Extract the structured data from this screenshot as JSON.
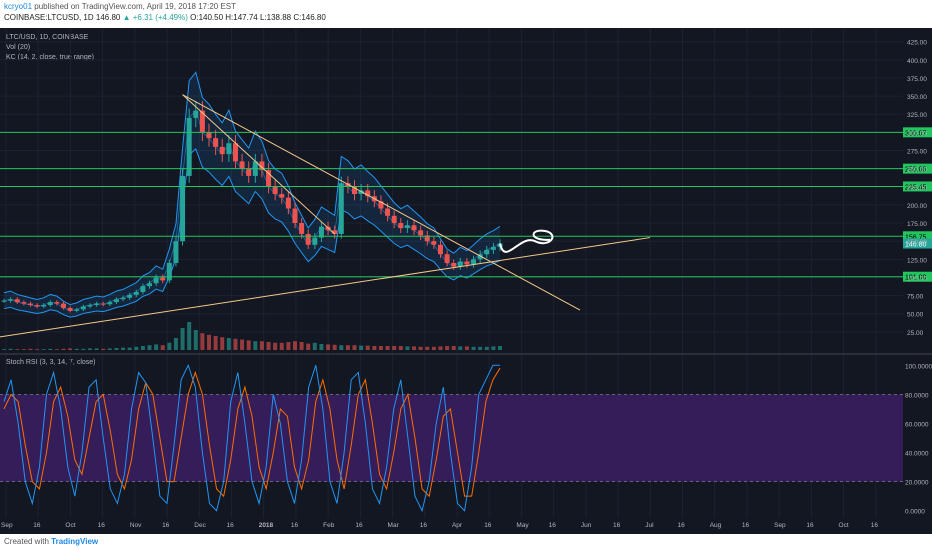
{
  "header": {
    "user": "kcryo01",
    "published": "published on TradingView.com, April 19, 2018 17:20 EST",
    "symbol_line": "COINBASE:LTCUSD, 1D",
    "price": "146.80",
    "change": "▲ +6.31 (+4.49%)",
    "ohlc": "O:140.50 H:147.74 L:138.88 C:146.80"
  },
  "legend": {
    "title": "LTC/USD, 1D, COINBASE",
    "vol": "Vol (20)",
    "kc": "KC (14, 2, close, true range)",
    "stoch": "Stoch RSI (3, 3, 14, 7, close)"
  },
  "footer": {
    "created": "Created with",
    "brand": "TradingView"
  },
  "colors": {
    "background": "#131722",
    "up": "#26a69a",
    "down": "#ef5350",
    "channel": "#2196f3",
    "level": "#22c55e",
    "trend": "#f5c98a",
    "stoch_band": "#3b1f63",
    "stoch_k": "#2196f3",
    "stoch_d": "#ff6d00"
  },
  "chart_data": [
    {
      "type": "line",
      "title": "LTC/USD, 1D, COINBASE",
      "ylim": [
        0,
        437
      ],
      "y_ticks": [
        25,
        50,
        75,
        100,
        125,
        150,
        175,
        200,
        225,
        250,
        275,
        300,
        325,
        350,
        375,
        400,
        425
      ],
      "y_tick_labels": [
        "25.00",
        "50.00",
        "75.00",
        "100.00",
        "125.00",
        "150.00",
        "175.00",
        "200.00",
        "225.00",
        "250.00",
        "275.00",
        "300.00",
        "325.00",
        "350.00",
        "375.00",
        "400.00",
        "425.00"
      ],
      "x_ticks": [
        "Sep",
        "16",
        "Oct",
        "16",
        "Nov",
        "16",
        "Dec",
        "16",
        "2018",
        "16",
        "Feb",
        "16",
        "Mar",
        "16",
        "Apr",
        "16",
        "May",
        "16",
        "Jun",
        "16",
        "Jul",
        "16",
        "Aug",
        "16",
        "Sep",
        "16",
        "Oct",
        "16"
      ],
      "horizontal_levels": [
        {
          "value": 300.07,
          "label": "300.07"
        },
        {
          "value": 250.0,
          "label": "250.00"
        },
        {
          "value": 225.45,
          "label": "225.45"
        },
        {
          "value": 156.75,
          "label": "156.75"
        },
        {
          "value": 101.0,
          "label": "101.00"
        }
      ],
      "last_price": {
        "value": 146.8,
        "label": "146.80"
      },
      "series": [
        {
          "name": "Price",
          "values": [
            68,
            70,
            66,
            64,
            62,
            60,
            62,
            66,
            64,
            58,
            54,
            56,
            60,
            62,
            64,
            63,
            66,
            70,
            72,
            76,
            80,
            88,
            92,
            100,
            96,
            120,
            150,
            240,
            320,
            330,
            300,
            292,
            280,
            270,
            285,
            260,
            250,
            240,
            260,
            248,
            225,
            215,
            210,
            195,
            175,
            160,
            145,
            155,
            170,
            165,
            160,
            230,
            225,
            215,
            220,
            212,
            205,
            195,
            185,
            175,
            168,
            172,
            165,
            158,
            150,
            145,
            132,
            120,
            115,
            122,
            118,
            125,
            132,
            138,
            142,
            146.8
          ]
        },
        {
          "name": "Vol",
          "values": [
            2,
            3,
            2,
            2,
            3,
            2,
            2,
            3,
            2,
            3,
            4,
            3,
            3,
            4,
            4,
            3,
            4,
            5,
            6,
            6,
            8,
            10,
            12,
            14,
            12,
            18,
            30,
            55,
            70,
            50,
            42,
            38,
            35,
            32,
            30,
            28,
            26,
            24,
            22,
            22,
            20,
            18,
            18,
            20,
            22,
            20,
            16,
            18,
            15,
            14,
            13,
            12,
            12,
            12,
            11,
            11,
            10,
            10,
            10,
            10,
            10,
            9,
            9,
            8,
            8,
            8,
            9,
            10,
            10,
            9,
            9,
            8,
            8,
            8,
            9,
            10
          ]
        }
      ]
    },
    {
      "type": "line",
      "title": "Stoch RSI (3, 3, 14, 7, close)",
      "ylim": [
        -5,
        105
      ],
      "y_ticks": [
        0,
        20,
        40,
        60,
        80,
        100
      ],
      "y_tick_labels": [
        "0.0000",
        "20.0000",
        "40.0000",
        "60.0000",
        "80.0000",
        "100.0000"
      ],
      "band": [
        20,
        80
      ],
      "series": [
        {
          "name": "K",
          "values": [
            75,
            90,
            60,
            20,
            5,
            30,
            80,
            95,
            70,
            30,
            10,
            40,
            85,
            90,
            50,
            15,
            5,
            25,
            70,
            95,
            88,
            50,
            10,
            5,
            45,
            90,
            100,
            85,
            40,
            5,
            0,
            20,
            75,
            95,
            60,
            20,
            5,
            30,
            80,
            60,
            20,
            5,
            35,
            85,
            100,
            70,
            20,
            5,
            40,
            90,
            95,
            60,
            15,
            5,
            30,
            70,
            90,
            50,
            10,
            0,
            20,
            60,
            85,
            40,
            5,
            0,
            30,
            80,
            90,
            100,
            100
          ]
        },
        {
          "name": "D",
          "values": [
            70,
            80,
            75,
            45,
            20,
            15,
            40,
            75,
            85,
            65,
            35,
            25,
            50,
            75,
            80,
            55,
            25,
            15,
            35,
            70,
            88,
            80,
            50,
            20,
            20,
            50,
            80,
            95,
            80,
            45,
            15,
            10,
            35,
            70,
            85,
            65,
            30,
            15,
            40,
            70,
            65,
            30,
            15,
            35,
            75,
            90,
            70,
            35,
            15,
            45,
            80,
            90,
            60,
            25,
            15,
            40,
            70,
            80,
            50,
            15,
            10,
            35,
            65,
            70,
            40,
            10,
            10,
            40,
            75,
            90,
            98
          ]
        }
      ]
    }
  ]
}
